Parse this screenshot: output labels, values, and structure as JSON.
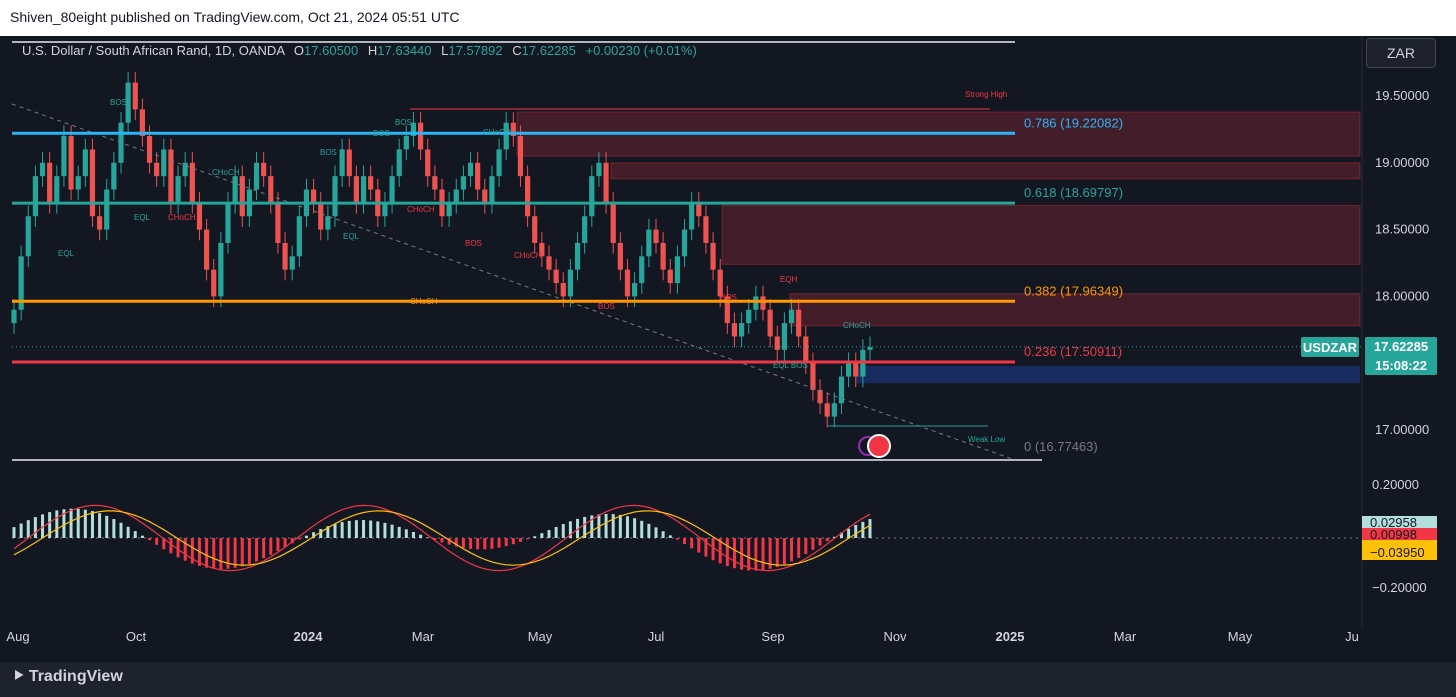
{
  "header": {
    "title": "Shiven_80eight published on TradingView.com, Oct 21, 2024 05:51 UTC"
  },
  "legend": {
    "instrument": "U.S. Dollar / South African Rand, 1D, OANDA",
    "o_key": "O",
    "o_val": "17.60500",
    "h_key": "H",
    "h_val": "17.63440",
    "l_key": "L",
    "l_val": "17.57892",
    "c_key": "C",
    "c_val": "17.62285",
    "change": "+0.00230 (+0.01%)"
  },
  "currency_button": "ZAR",
  "price_tag": {
    "ticker": "USDZAR",
    "price": "17.62285",
    "countdown": "15:08:22"
  },
  "osc_tags": [
    "0.02958",
    "0.00998",
    "−0.03950"
  ],
  "footer": {
    "logo": "TradingView"
  },
  "colors": {
    "background": "#131722",
    "up": "#26a69a",
    "down": "#ef5350",
    "fib_786": "#29b6f6",
    "fib_618": "#26a69a",
    "fib_382": "#ff9800",
    "fib_236": "#f23645"
  },
  "chart_data": {
    "type": "candlestick",
    "symbol": "USDZAR",
    "price_axis": {
      "ticks": [
        "19.50000",
        "19.00000",
        "18.50000",
        "18.00000",
        "17.00000"
      ],
      "range": [
        16.6,
        19.8
      ]
    },
    "time_axis": {
      "ticks": [
        "Aug",
        "Oct",
        "2024",
        "Mar",
        "May",
        "Jul",
        "Sep",
        "Nov",
        "2025",
        "Mar",
        "May",
        "Ju"
      ]
    },
    "fib_levels": [
      {
        "ratio": "0.786",
        "price": 19.22082,
        "label": "0.786 (19.22082)"
      },
      {
        "ratio": "0.618",
        "price": 18.69797,
        "label": "0.618 (18.69797)"
      },
      {
        "ratio": "0.382",
        "price": 17.96349,
        "label": "0.382 (17.96349)"
      },
      {
        "ratio": "0.236",
        "price": 17.50911,
        "label": "0.236 (17.50911)"
      },
      {
        "ratio": "0",
        "price": 16.77463,
        "label": "0 (16.77463)"
      }
    ],
    "supply_zones": [
      {
        "top": 19.38,
        "bottom": 19.05
      },
      {
        "top": 19.0,
        "bottom": 18.88
      },
      {
        "top": 18.68,
        "bottom": 18.24
      },
      {
        "top": 18.02,
        "bottom": 17.78
      }
    ],
    "demand_zones": [
      {
        "top": 17.48,
        "bottom": 17.35
      }
    ],
    "annotations": [
      "Strong High",
      "BOS",
      "BOS",
      "BOS",
      "BOS",
      "BOS",
      "BOS",
      "BOS",
      "CHoCH",
      "CHoCH",
      "CHoCH",
      "CHoCH",
      "CHoCH",
      "CHoCH",
      "CHoCH",
      "EQL",
      "EQL",
      "EQL",
      "EQH",
      "EQL BOS",
      "Weak Low"
    ],
    "candles_close": [
      17.9,
      18.3,
      18.6,
      18.9,
      19.0,
      18.7,
      18.9,
      19.2,
      18.8,
      18.9,
      19.1,
      18.6,
      18.5,
      18.8,
      19.0,
      19.3,
      19.6,
      19.4,
      19.2,
      19.0,
      18.9,
      19.1,
      18.7,
      18.9,
      19.0,
      18.7,
      18.5,
      18.2,
      18.0,
      18.4,
      18.7,
      18.9,
      18.6,
      18.8,
      19.0,
      18.9,
      18.7,
      18.4,
      18.2,
      18.3,
      18.6,
      18.8,
      18.7,
      18.5,
      18.6,
      18.9,
      19.1,
      18.9,
      18.7,
      18.9,
      18.8,
      18.6,
      18.7,
      18.9,
      19.1,
      19.2,
      19.3,
      19.1,
      18.9,
      18.8,
      18.6,
      18.7,
      18.8,
      18.9,
      19.0,
      18.8,
      18.7,
      18.9,
      19.1,
      19.3,
      19.2,
      18.9,
      18.6,
      18.4,
      18.3,
      18.2,
      18.1,
      18.0,
      18.2,
      18.4,
      18.6,
      18.9,
      19.0,
      18.7,
      18.4,
      18.2,
      18.0,
      18.1,
      18.3,
      18.5,
      18.4,
      18.2,
      18.1,
      18.3,
      18.5,
      18.7,
      18.6,
      18.4,
      18.2,
      18.0,
      17.8,
      17.7,
      17.8,
      17.9,
      18.0,
      17.9,
      17.7,
      17.6,
      17.8,
      17.9,
      17.7,
      17.5,
      17.3,
      17.2,
      17.1,
      17.2,
      17.4,
      17.5,
      17.4,
      17.6,
      17.62
    ],
    "oscillator": {
      "ticks": [
        "0.20000",
        "−0.20000"
      ],
      "values": [
        "0.02958",
        "0.00998",
        "−0.03950"
      ]
    }
  }
}
